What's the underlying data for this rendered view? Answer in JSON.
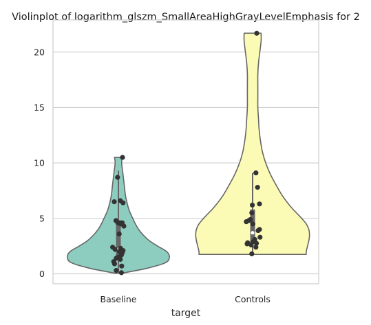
{
  "chart_data": {
    "type": "violin",
    "title": "Violinplot of logarithm_glszm_SmallAreaHighGrayLevelEmphasis for 2",
    "xlabel": "target",
    "ylabel": "",
    "categories": [
      "Baseline",
      "Controls"
    ],
    "yticks": [
      0,
      5,
      10,
      15,
      20
    ],
    "ylim": [
      -0.9,
      22.9
    ],
    "grid": "horizontal",
    "colors": {
      "Baseline": "#8dcdc0",
      "Controls": "#fbfbb6",
      "outline": "#666666",
      "points": "#333333",
      "grid": "#d0d0d0",
      "frame": "#cccccc"
    },
    "violins": [
      {
        "name": "Baseline",
        "profile": [
          [
            0.05,
            0.05
          ],
          [
            0.5,
            0.44
          ],
          [
            1.0,
            0.72
          ],
          [
            1.5,
            0.78
          ],
          [
            2.0,
            0.74
          ],
          [
            2.5,
            0.6
          ],
          [
            3.0,
            0.47
          ],
          [
            3.5,
            0.38
          ],
          [
            4.0,
            0.31
          ],
          [
            4.5,
            0.26
          ],
          [
            5.0,
            0.22
          ],
          [
            5.5,
            0.18
          ],
          [
            6.0,
            0.15
          ],
          [
            7.0,
            0.11
          ],
          [
            8.0,
            0.09
          ],
          [
            9.0,
            0.07
          ],
          [
            10.0,
            0.05
          ],
          [
            10.5,
            0.06
          ]
        ],
        "box": {
          "q1": 1.3,
          "q3": 4.6,
          "whisker_low": 0.05,
          "whisker_high": 9.3,
          "median": 2.2
        },
        "points": [
          {
            "j": 0.15,
            "y": 10.5
          },
          {
            "j": -0.03,
            "y": 8.7
          },
          {
            "j": 0.07,
            "y": 6.6
          },
          {
            "j": -0.15,
            "y": 6.5
          },
          {
            "j": 0.17,
            "y": 6.4
          },
          {
            "j": -0.09,
            "y": 4.8
          },
          {
            "j": -0.02,
            "y": 4.6
          },
          {
            "j": 0.05,
            "y": 4.6
          },
          {
            "j": 0.08,
            "y": 4.5
          },
          {
            "j": 0.14,
            "y": 4.6
          },
          {
            "j": 0.2,
            "y": 4.3
          },
          {
            "j": 0.03,
            "y": 3.6
          },
          {
            "j": -0.21,
            "y": 2.4
          },
          {
            "j": -0.12,
            "y": 2.2
          },
          {
            "j": 0.08,
            "y": 2.3
          },
          {
            "j": 0.17,
            "y": 2.1
          },
          {
            "j": 0.04,
            "y": 2.0
          },
          {
            "j": 0.14,
            "y": 1.9
          },
          {
            "j": 0.11,
            "y": 1.7
          },
          {
            "j": -0.02,
            "y": 1.5
          },
          {
            "j": -0.08,
            "y": 1.4
          },
          {
            "j": 0.07,
            "y": 1.3
          },
          {
            "j": -0.17,
            "y": 1.1
          },
          {
            "j": -0.14,
            "y": 0.9
          },
          {
            "j": 0.12,
            "y": 0.7
          },
          {
            "j": -0.08,
            "y": 0.3
          },
          {
            "j": 0.11,
            "y": 0.1
          }
        ]
      },
      {
        "name": "Controls",
        "profile": [
          [
            1.75,
            0.82
          ],
          [
            2.0,
            0.82
          ],
          [
            2.5,
            0.84
          ],
          [
            3.0,
            0.86
          ],
          [
            3.5,
            0.87
          ],
          [
            4.0,
            0.86
          ],
          [
            4.5,
            0.82
          ],
          [
            5.0,
            0.75
          ],
          [
            5.5,
            0.67
          ],
          [
            6.0,
            0.59
          ],
          [
            7.0,
            0.46
          ],
          [
            8.0,
            0.36
          ],
          [
            9.0,
            0.27
          ],
          [
            10.0,
            0.2
          ],
          [
            11.0,
            0.15
          ],
          [
            12.0,
            0.12
          ],
          [
            13.0,
            0.1
          ],
          [
            14.0,
            0.09
          ],
          [
            15.0,
            0.08
          ],
          [
            16.0,
            0.08
          ],
          [
            17.0,
            0.08
          ],
          [
            18.0,
            0.08
          ],
          [
            19.0,
            0.09
          ],
          [
            20.0,
            0.11
          ],
          [
            21.0,
            0.13
          ],
          [
            21.7,
            0.13
          ]
        ],
        "box": {
          "q1": 2.8,
          "q3": 5.8,
          "whisker_low": 1.75,
          "whisker_high": 9.1,
          "median": 3.7
        },
        "points": [
          {
            "j": 0.15,
            "y": 21.7
          },
          {
            "j": 0.12,
            "y": 9.1
          },
          {
            "j": 0.18,
            "y": 7.8
          },
          {
            "j": 0.25,
            "y": 6.3
          },
          {
            "j": -0.01,
            "y": 6.2
          },
          {
            "j": -0.03,
            "y": 5.5
          },
          {
            "j": -0.08,
            "y": 4.9
          },
          {
            "j": -0.23,
            "y": 4.7
          },
          {
            "j": -0.14,
            "y": 4.8
          },
          {
            "j": 0.01,
            "y": 4.5
          },
          {
            "j": 0.25,
            "y": 4.0
          },
          {
            "j": 0.2,
            "y": 3.9
          },
          {
            "j": 0.27,
            "y": 3.3
          },
          {
            "j": 0.08,
            "y": 3.1
          },
          {
            "j": 0.02,
            "y": 2.9
          },
          {
            "j": -0.18,
            "y": 2.8
          },
          {
            "j": -0.2,
            "y": 2.7
          },
          {
            "j": 0.14,
            "y": 2.75
          },
          {
            "j": -0.05,
            "y": 2.6
          },
          {
            "j": 0.12,
            "y": 2.4
          },
          {
            "j": -0.03,
            "y": 1.8
          }
        ]
      }
    ]
  }
}
